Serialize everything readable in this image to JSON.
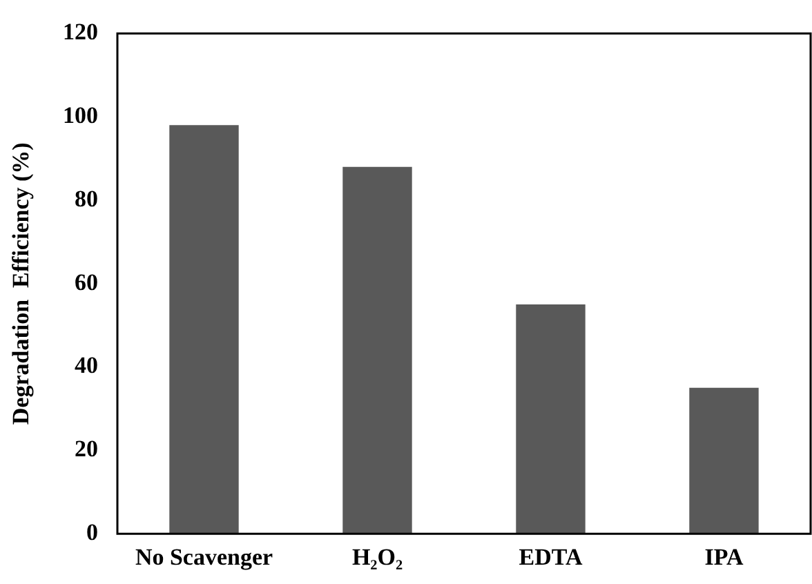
{
  "chart_data": {
    "type": "bar",
    "ylabel": "Degradation  Efficiency (%)",
    "categories": [
      "No Scavenger",
      "H₂O₂",
      "EDTA",
      "IPA"
    ],
    "values": [
      98,
      88,
      55,
      35
    ],
    "color": "#595959",
    "ylim": [
      0,
      120
    ],
    "yticks": [
      0,
      20,
      40,
      60,
      80,
      100,
      120
    ],
    "grid": false,
    "legend": false
  }
}
